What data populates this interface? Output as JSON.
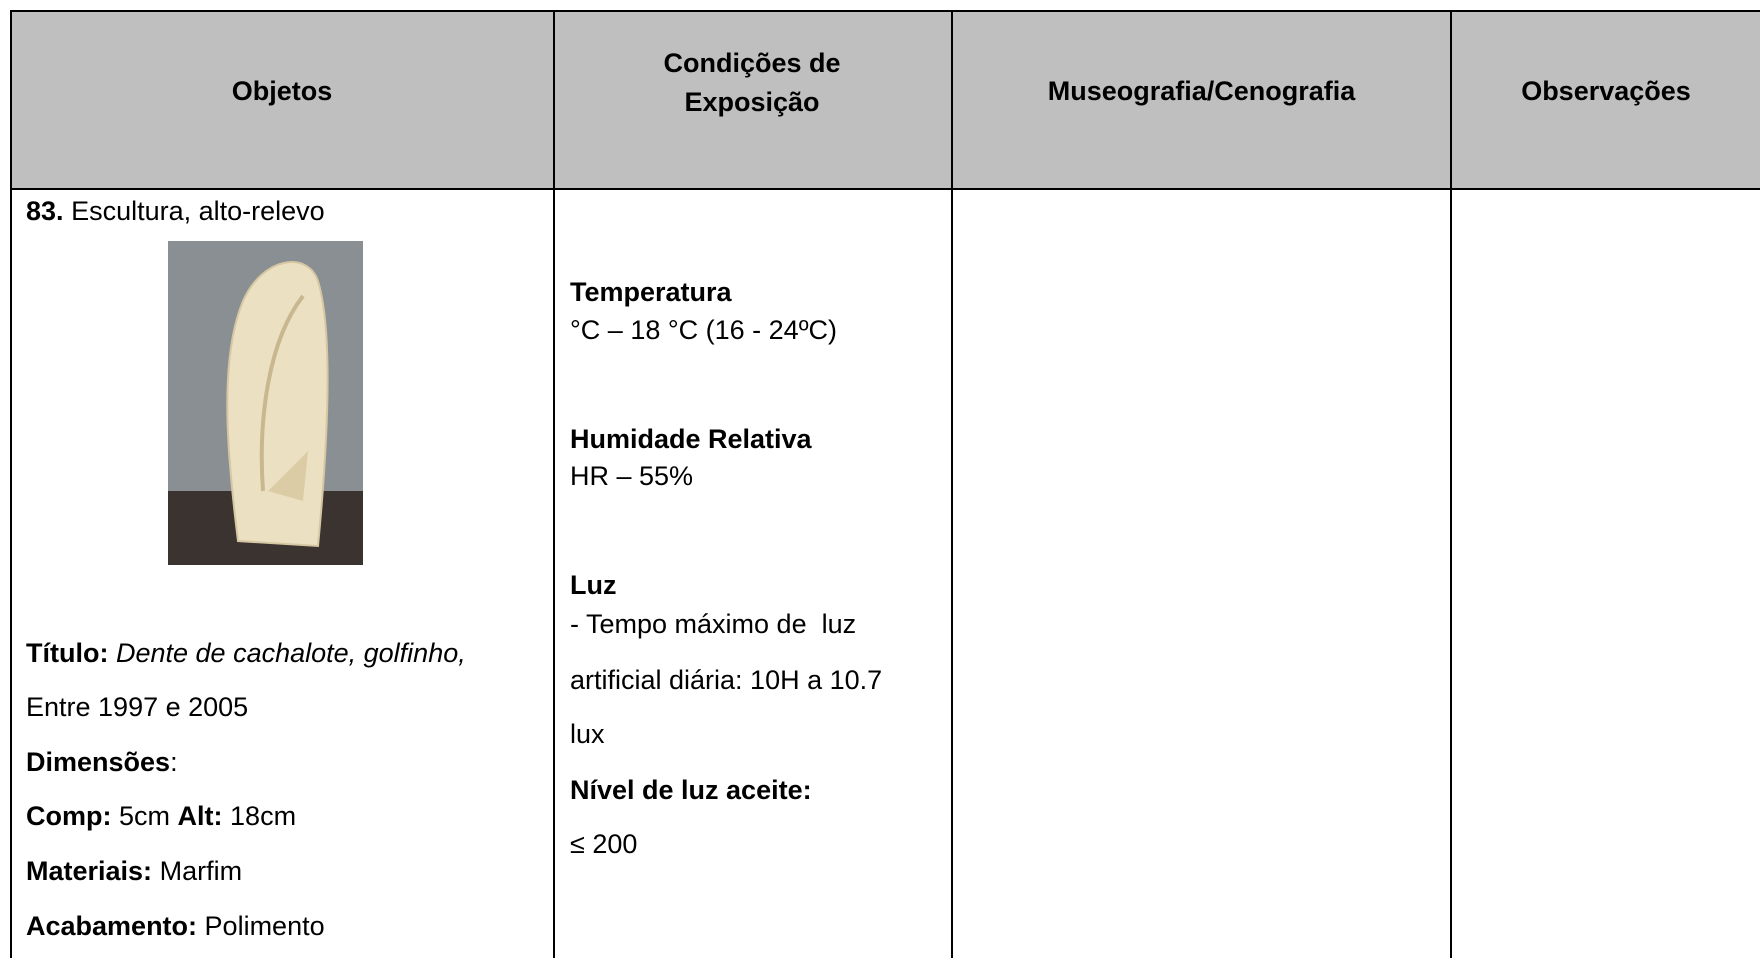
{
  "header": {
    "columns": [
      "Objetos",
      "Condições de Exposição",
      "Museografia/Cenografia",
      "Observações"
    ]
  },
  "row": {
    "object": {
      "number": "83.",
      "name": "Escultura, alto-relevo",
      "title_label": "Título:",
      "title_value": "Dente de cachalote, golfinho,",
      "date": "Entre 1997 e 2005",
      "dimensions_label": "Dimensões",
      "dimensions_suffix": ":",
      "length_label": "Comp:",
      "length_value": "5cm",
      "height_label": "Alt:",
      "height_value": "18cm",
      "materials_label": "Materiais:",
      "materials_value": "Marfim",
      "finish_label": "Acabamento:",
      "finish_value": "Polimento"
    },
    "conditions": {
      "temperature_heading": "Temperatura",
      "temperature_value": "°C – 18 °C (16 - 24ºC)",
      "humidity_heading": "Humidade Relativa",
      "humidity_value": "HR – 55%",
      "light_heading": "Luz",
      "light_lines": [
        "- Tempo máximo de  luz",
        "artificial diária: 10H a 10.7",
        "lux"
      ],
      "light_level_heading": "Nível de luz aceite:",
      "light_level_value": "≤ 200"
    }
  }
}
